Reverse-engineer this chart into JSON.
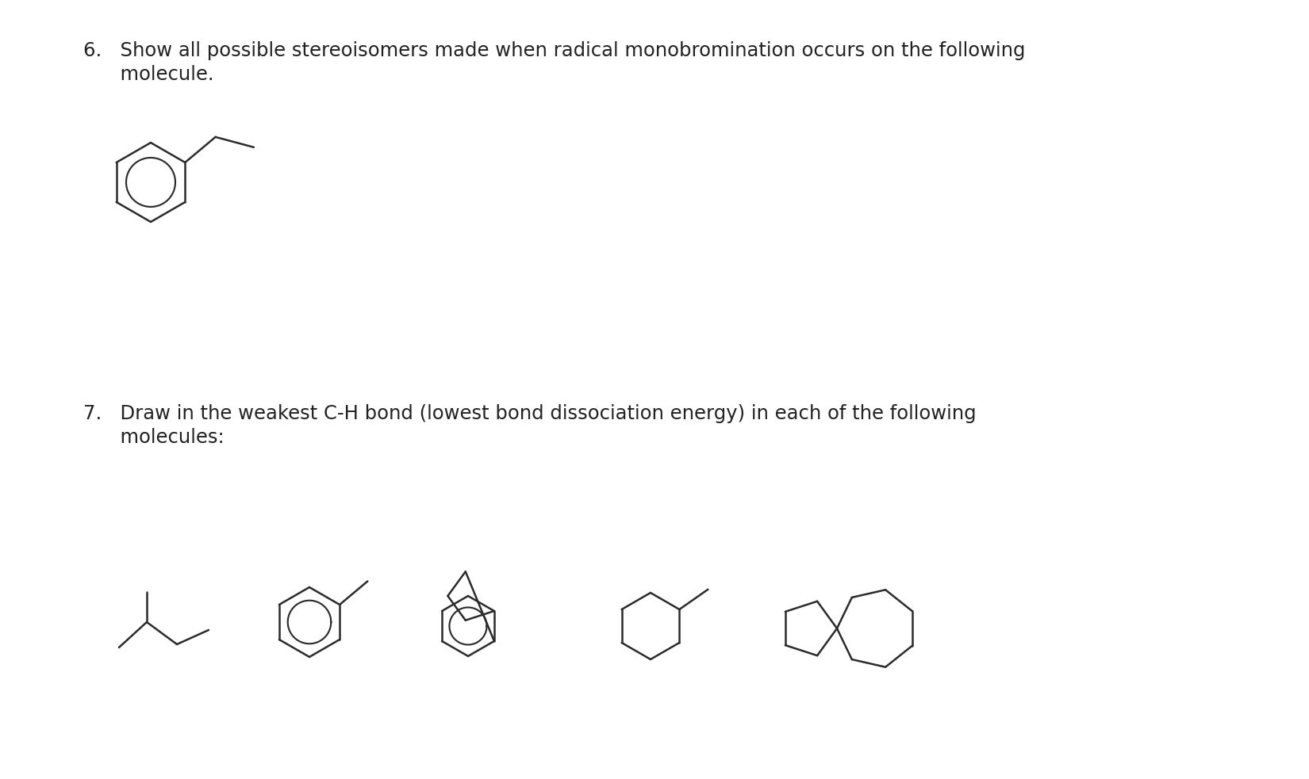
{
  "bg_color": "#ffffff",
  "text_color": "#222222",
  "q6_line1": "6.   Show all possible stereoisomers made when radical monobromination occurs on the following",
  "q6_line2": "      molecule.",
  "q7_line1": "7.   Draw in the weakest C-H bond (lowest bond dissociation energy) in each of the following",
  "q7_line2": "      molecules:",
  "font_size": 17.5,
  "lw": 1.8,
  "lc": "#2b2b2b"
}
